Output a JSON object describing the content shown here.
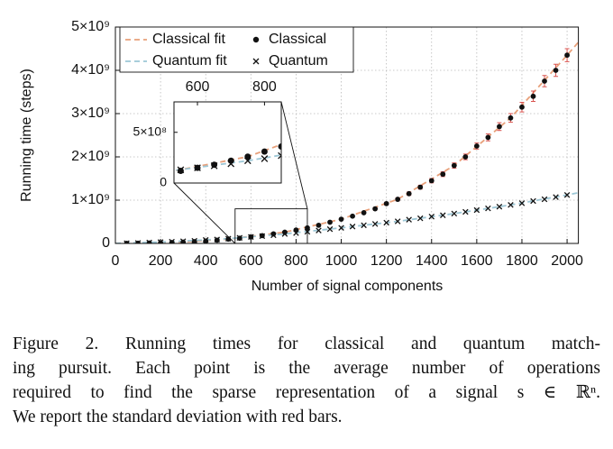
{
  "chart_data": {
    "type": "scatter",
    "x_label": "Number of signal components",
    "y_label": "Running time (steps)",
    "xlim": [
      0,
      2050
    ],
    "ylim": [
      0,
      5000000000.0
    ],
    "xticks": [
      0,
      200,
      400,
      600,
      800,
      1000,
      1200,
      1400,
      1600,
      1800,
      2000
    ],
    "yticks": [
      0,
      {
        "value": 1000000000.0,
        "label": "1×10⁹"
      },
      {
        "value": 2000000000.0,
        "label": "2×10⁹"
      },
      {
        "value": 3000000000.0,
        "label": "3×10⁹"
      },
      {
        "value": 4000000000.0,
        "label": "4×10⁹"
      },
      {
        "value": 5000000000.0,
        "label": "5×10⁹"
      }
    ],
    "grid": true,
    "legend": "upper left",
    "series": [
      {
        "name": "Classical fit",
        "color": "#e8a07a",
        "style": "dashed",
        "x": [
          0,
          250,
          500,
          750,
          1000,
          1250,
          1500,
          1750,
          2000,
          2050
        ],
        "values": [
          0,
          20000000.0,
          100000000.0,
          260000000.0,
          560000000.0,
          1020000000.0,
          1800000000.0,
          2900000000.0,
          4350000000.0,
          4650000000.0
        ]
      },
      {
        "name": "Classical",
        "color": "#111111",
        "marker": "dot",
        "error_color": "#d9534f",
        "x": [
          50,
          100,
          150,
          200,
          250,
          300,
          350,
          400,
          450,
          500,
          550,
          600,
          650,
          700,
          750,
          800,
          850,
          900,
          950,
          1000,
          1050,
          1100,
          1150,
          1200,
          1250,
          1300,
          1350,
          1400,
          1450,
          1500,
          1550,
          1600,
          1650,
          1700,
          1750,
          1800,
          1850,
          1900,
          1950,
          2000
        ],
        "values": [
          2000000.0,
          5000000.0,
          10000000.0,
          15000000.0,
          20000000.0,
          30000000.0,
          40000000.0,
          55000000.0,
          75000000.0,
          100000000.0,
          120000000.0,
          150000000.0,
          180000000.0,
          220000000.0,
          260000000.0,
          310000000.0,
          360000000.0,
          420000000.0,
          490000000.0,
          560000000.0,
          630000000.0,
          710000000.0,
          800000000.0,
          920000000.0,
          1020000000.0,
          1150000000.0,
          1300000000.0,
          1450000000.0,
          1600000000.0,
          1800000000.0,
          2000000000.0,
          2250000000.0,
          2450000000.0,
          2700000000.0,
          2900000000.0,
          3150000000.0,
          3400000000.0,
          3750000000.0,
          4000000000.0,
          4350000000.0
        ],
        "errors": [
          5000000.0,
          5000000.0,
          5000000.0,
          5000000.0,
          5000000.0,
          5000000.0,
          5000000.0,
          5000000.0,
          5000000.0,
          5000000.0,
          5000000.0,
          5000000.0,
          5000000.0,
          5000000.0,
          5000000.0,
          5000000.0,
          10000000.0,
          10000000.0,
          15000000.0,
          15000000.0,
          20000000.0,
          20000000.0,
          25000000.0,
          30000000.0,
          35000000.0,
          40000000.0,
          45000000.0,
          50000000.0,
          55000000.0,
          60000000.0,
          65000000.0,
          70000000.0,
          80000000.0,
          90000000.0,
          100000000.0,
          110000000.0,
          120000000.0,
          130000000.0,
          140000000.0,
          150000000.0
        ]
      },
      {
        "name": "Quantum fit",
        "color": "#9cc7d6",
        "style": "dashed",
        "x": [
          0,
          250,
          500,
          750,
          1000,
          1250,
          1500,
          1750,
          2000,
          2050
        ],
        "values": [
          0,
          40000000.0,
          110000000.0,
          220000000.0,
          360000000.0,
          510000000.0,
          690000000.0,
          890000000.0,
          1120000000.0,
          1170000000.0
        ]
      },
      {
        "name": "Quantum",
        "color": "#111111",
        "marker": "cross",
        "x": [
          50,
          100,
          150,
          200,
          250,
          300,
          350,
          400,
          450,
          500,
          550,
          600,
          650,
          700,
          750,
          800,
          850,
          900,
          950,
          1000,
          1050,
          1100,
          1150,
          1200,
          1250,
          1300,
          1350,
          1400,
          1450,
          1500,
          1550,
          1600,
          1650,
          1700,
          1750,
          1800,
          1850,
          1900,
          1950,
          2000
        ],
        "values": [
          5000000.0,
          10000000.0,
          20000000.0,
          30000000.0,
          40000000.0,
          50000000.0,
          60000000.0,
          80000000.0,
          90000000.0,
          110000000.0,
          130000000.0,
          150000000.0,
          170000000.0,
          190000000.0,
          220000000.0,
          240000000.0,
          270000000.0,
          300000000.0,
          330000000.0,
          360000000.0,
          390000000.0,
          420000000.0,
          450000000.0,
          480000000.0,
          510000000.0,
          550000000.0,
          580000000.0,
          620000000.0,
          650000000.0,
          690000000.0,
          730000000.0,
          770000000.0,
          810000000.0,
          850000000.0,
          890000000.0,
          930000000.0,
          980000000.0,
          1020000000.0,
          1070000000.0,
          1120000000.0
        ]
      }
    ],
    "inset": {
      "xlim": [
        530,
        850
      ],
      "ylim": [
        0,
        800000000.0
      ],
      "xticks": [
        600,
        800
      ],
      "yticks": [
        0,
        {
          "value": 500000000.0,
          "label": "5×10⁸"
        }
      ]
    }
  },
  "caption_lines": [
    "Figure 2.   Running times for classical and quantum match-",
    "ing pursuit.  Each point is the average number of operations",
    "required to find the sparse representation of a signal s ∈ ℝⁿ.",
    "We report the standard deviation with red bars."
  ]
}
